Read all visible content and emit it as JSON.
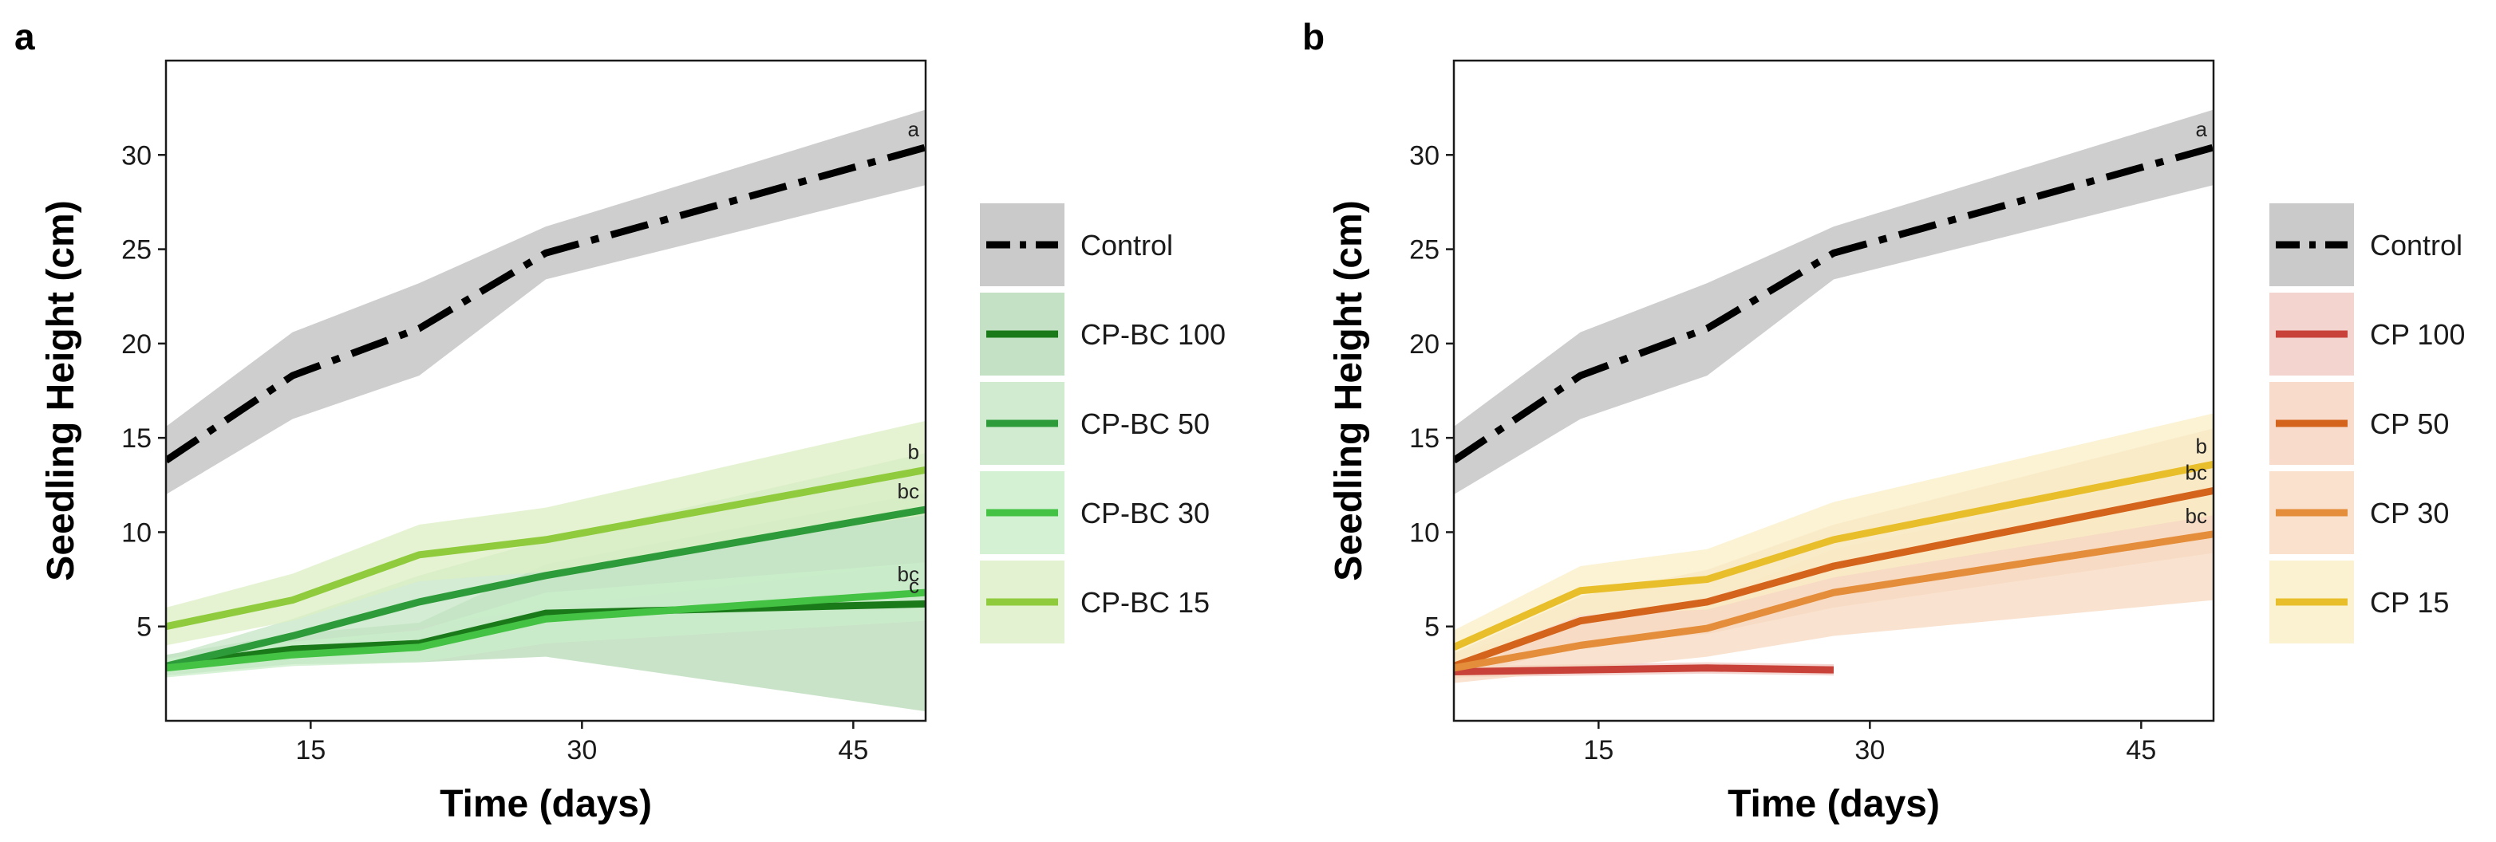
{
  "chart_data": [
    {
      "type": "line",
      "panel": "a",
      "xlabel": "Time (days)",
      "ylabel": "Seedling Height (cm)",
      "xlim": [
        7,
        49
      ],
      "ylim": [
        0,
        35
      ],
      "xticks": [
        15,
        30,
        45
      ],
      "yticks": [
        5,
        10,
        15,
        20,
        25,
        30
      ],
      "grid": false,
      "legend_position": "right",
      "series": [
        {
          "name": "Control",
          "color": "#000000",
          "band_color": "#bdbdbd",
          "dash": "dotdash",
          "x": [
            7,
            14,
            21,
            28,
            49
          ],
          "y": [
            13.8,
            18.3,
            20.8,
            24.8,
            30.4
          ],
          "lower": [
            12.0,
            16.0,
            18.3,
            23.4,
            28.4
          ],
          "upper": [
            15.6,
            20.6,
            23.2,
            26.2,
            32.4
          ],
          "sig": "a"
        },
        {
          "name": "CP-BC 100",
          "color": "#1a7a1a",
          "band_color": "#b7d9b7",
          "dash": "solid",
          "x": [
            7,
            14,
            21,
            28,
            49
          ],
          "y": [
            2.9,
            3.8,
            4.1,
            5.7,
            6.2
          ],
          "lower": [
            2.4,
            3.0,
            3.1,
            3.4,
            0.5
          ],
          "upper": [
            3.5,
            4.6,
            5.2,
            8.3,
            12.1
          ],
          "sig": "c"
        },
        {
          "name": "CP-BC 50",
          "color": "#2e9b3a",
          "band_color": "#c4e6c4",
          "dash": "solid",
          "x": [
            7,
            14,
            21,
            28,
            49
          ],
          "y": [
            2.9,
            4.5,
            6.3,
            7.7,
            11.2
          ],
          "lower": [
            2.5,
            3.7,
            5.0,
            6.0,
            8.4
          ],
          "upper": [
            3.4,
            5.4,
            7.7,
            9.6,
            14.2
          ],
          "sig": "bc"
        },
        {
          "name": "CP-BC 30",
          "color": "#44c244",
          "band_color": "#c9eec9",
          "dash": "solid",
          "x": [
            7,
            14,
            21,
            28,
            49
          ],
          "y": [
            2.8,
            3.5,
            3.9,
            5.4,
            6.8
          ],
          "lower": [
            2.3,
            2.9,
            3.1,
            4.1,
            5.3
          ],
          "upper": [
            3.3,
            4.2,
            4.8,
            6.8,
            8.4
          ],
          "sig": "bc"
        },
        {
          "name": "CP-BC 15",
          "color": "#8fcb3c",
          "band_color": "#dcefc4",
          "dash": "solid",
          "x": [
            7,
            14,
            21,
            28,
            49
          ],
          "y": [
            5.0,
            6.4,
            8.8,
            9.6,
            13.3
          ],
          "lower": [
            4.0,
            5.3,
            7.4,
            7.9,
            10.9
          ],
          "upper": [
            6.0,
            7.8,
            10.4,
            11.3,
            15.9
          ],
          "sig": "b"
        }
      ]
    },
    {
      "type": "line",
      "panel": "b",
      "xlabel": "Time (days)",
      "ylabel": "Seedling Height (cm)",
      "xlim": [
        7,
        49
      ],
      "ylim": [
        0,
        35
      ],
      "xticks": [
        15,
        30,
        45
      ],
      "yticks": [
        5,
        10,
        15,
        20,
        25,
        30
      ],
      "grid": false,
      "legend_position": "right",
      "series": [
        {
          "name": "Control",
          "color": "#000000",
          "band_color": "#bdbdbd",
          "dash": "dotdash",
          "x": [
            7,
            14,
            21,
            28,
            49
          ],
          "y": [
            13.8,
            18.3,
            20.8,
            24.8,
            30.4
          ],
          "lower": [
            12.0,
            16.0,
            18.3,
            23.4,
            28.4
          ],
          "upper": [
            15.6,
            20.6,
            23.2,
            26.2,
            32.4
          ],
          "sig": "a"
        },
        {
          "name": "CP 100",
          "color": "#c8423a",
          "band_color": "#f0c9c3",
          "dash": "solid",
          "x": [
            7,
            14,
            21,
            28
          ],
          "y": [
            2.6,
            2.7,
            2.8,
            2.7
          ],
          "lower": [
            2.3,
            2.4,
            2.5,
            2.4
          ],
          "upper": [
            2.9,
            3.0,
            3.1,
            3.0
          ]
        },
        {
          "name": "CP 50",
          "color": "#d4631c",
          "band_color": "#f6d2bd",
          "dash": "solid",
          "x": [
            7,
            14,
            21,
            28,
            49
          ],
          "y": [
            2.9,
            5.3,
            6.3,
            8.2,
            12.2
          ],
          "lower": [
            2.2,
            4.0,
            4.6,
            6.0,
            8.9
          ],
          "upper": [
            3.6,
            6.6,
            8.0,
            10.4,
            15.5
          ],
          "sig": "bc"
        },
        {
          "name": "CP 30",
          "color": "#e48d3a",
          "band_color": "#f7d9c0",
          "dash": "solid",
          "x": [
            7,
            14,
            21,
            28,
            49
          ],
          "y": [
            2.8,
            4.0,
            4.9,
            6.8,
            9.9
          ],
          "lower": [
            2.0,
            2.7,
            3.4,
            4.5,
            6.4
          ],
          "upper": [
            3.6,
            5.3,
            6.4,
            9.1,
            13.4
          ],
          "sig": "bc"
        },
        {
          "name": "CP 15",
          "color": "#e8be2a",
          "band_color": "#faefc6",
          "dash": "solid",
          "x": [
            7,
            14,
            21,
            28,
            49
          ],
          "y": [
            3.9,
            6.9,
            7.5,
            9.6,
            13.6
          ],
          "lower": [
            3.0,
            5.6,
            5.9,
            7.6,
            10.9
          ],
          "upper": [
            4.8,
            8.2,
            9.1,
            11.6,
            16.3
          ],
          "sig": "b"
        }
      ]
    }
  ]
}
